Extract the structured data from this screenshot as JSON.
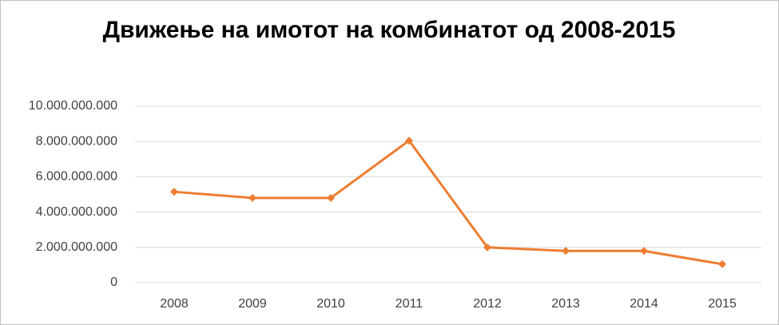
{
  "chart_data": {
    "type": "line",
    "title": "Движење на имотот на комбинатот од 2008-2015",
    "categories": [
      "2008",
      "2009",
      "2010",
      "2011",
      "2012",
      "2013",
      "2014",
      "2015"
    ],
    "values": [
      5150000000,
      4800000000,
      4800000000,
      8050000000,
      2000000000,
      1800000000,
      1800000000,
      1050000000
    ],
    "color": "#ed7d31",
    "ylim": [
      0,
      10000000000
    ],
    "yticks": [
      0,
      {
        "value": 2000000000,
        "label": "2.000.000.000"
      },
      {
        "value": 4000000000,
        "label": "4.000.000.000"
      },
      {
        "value": 6000000000,
        "label": "6.000.000.000"
      },
      {
        "value": 8000000000,
        "label": "8.000.000.000"
      },
      {
        "value": 10000000000,
        "label": "10.000.000.000"
      }
    ],
    "grid": true
  }
}
